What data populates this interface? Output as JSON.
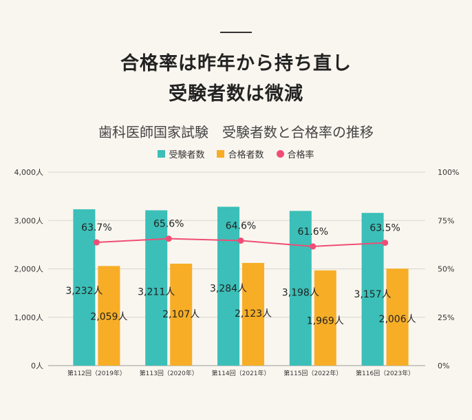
{
  "headline": {
    "line1": "合格率は昨年から持ち直し",
    "line2": "受験者数は微減"
  },
  "chart_data": {
    "type": "bar",
    "title": "歯科医師国家試験　受験者数と合格率の推移",
    "categories": [
      "第112回（2019年）",
      "第113回（2020年）",
      "第114回（2021年）",
      "第115回（2022年）",
      "第116回（2023年）"
    ],
    "series": [
      {
        "name": "受験者数",
        "type": "bar",
        "axis": "left",
        "color": "#3bbfb8",
        "values": [
          3232,
          3211,
          3284,
          3198,
          3157
        ],
        "labels": [
          "3,232人",
          "3,211人",
          "3,284人",
          "3,198人",
          "3,157人"
        ]
      },
      {
        "name": "合格者数",
        "type": "bar",
        "axis": "left",
        "color": "#f7ad26",
        "values": [
          2059,
          2107,
          2123,
          1969,
          2006
        ],
        "labels": [
          "2,059人",
          "2,107人",
          "2,123人",
          "1,969人",
          "2,006人"
        ]
      },
      {
        "name": "合格率",
        "type": "line",
        "axis": "right",
        "color": "#f04d75",
        "values": [
          63.7,
          65.6,
          64.6,
          61.6,
          63.5
        ],
        "labels": [
          "63.7%",
          "65.6%",
          "64.6%",
          "61.6%",
          "63.5%"
        ]
      }
    ],
    "y_left": {
      "range": [
        0,
        4000
      ],
      "ticks": [
        "0人",
        "1,000人",
        "2,000人",
        "3,000人",
        "4,000人"
      ]
    },
    "y_right": {
      "range": [
        0,
        100
      ],
      "ticks": [
        "0%",
        "25%",
        "50%",
        "75%",
        "100%"
      ]
    },
    "grid": true,
    "legend_position": "top"
  }
}
